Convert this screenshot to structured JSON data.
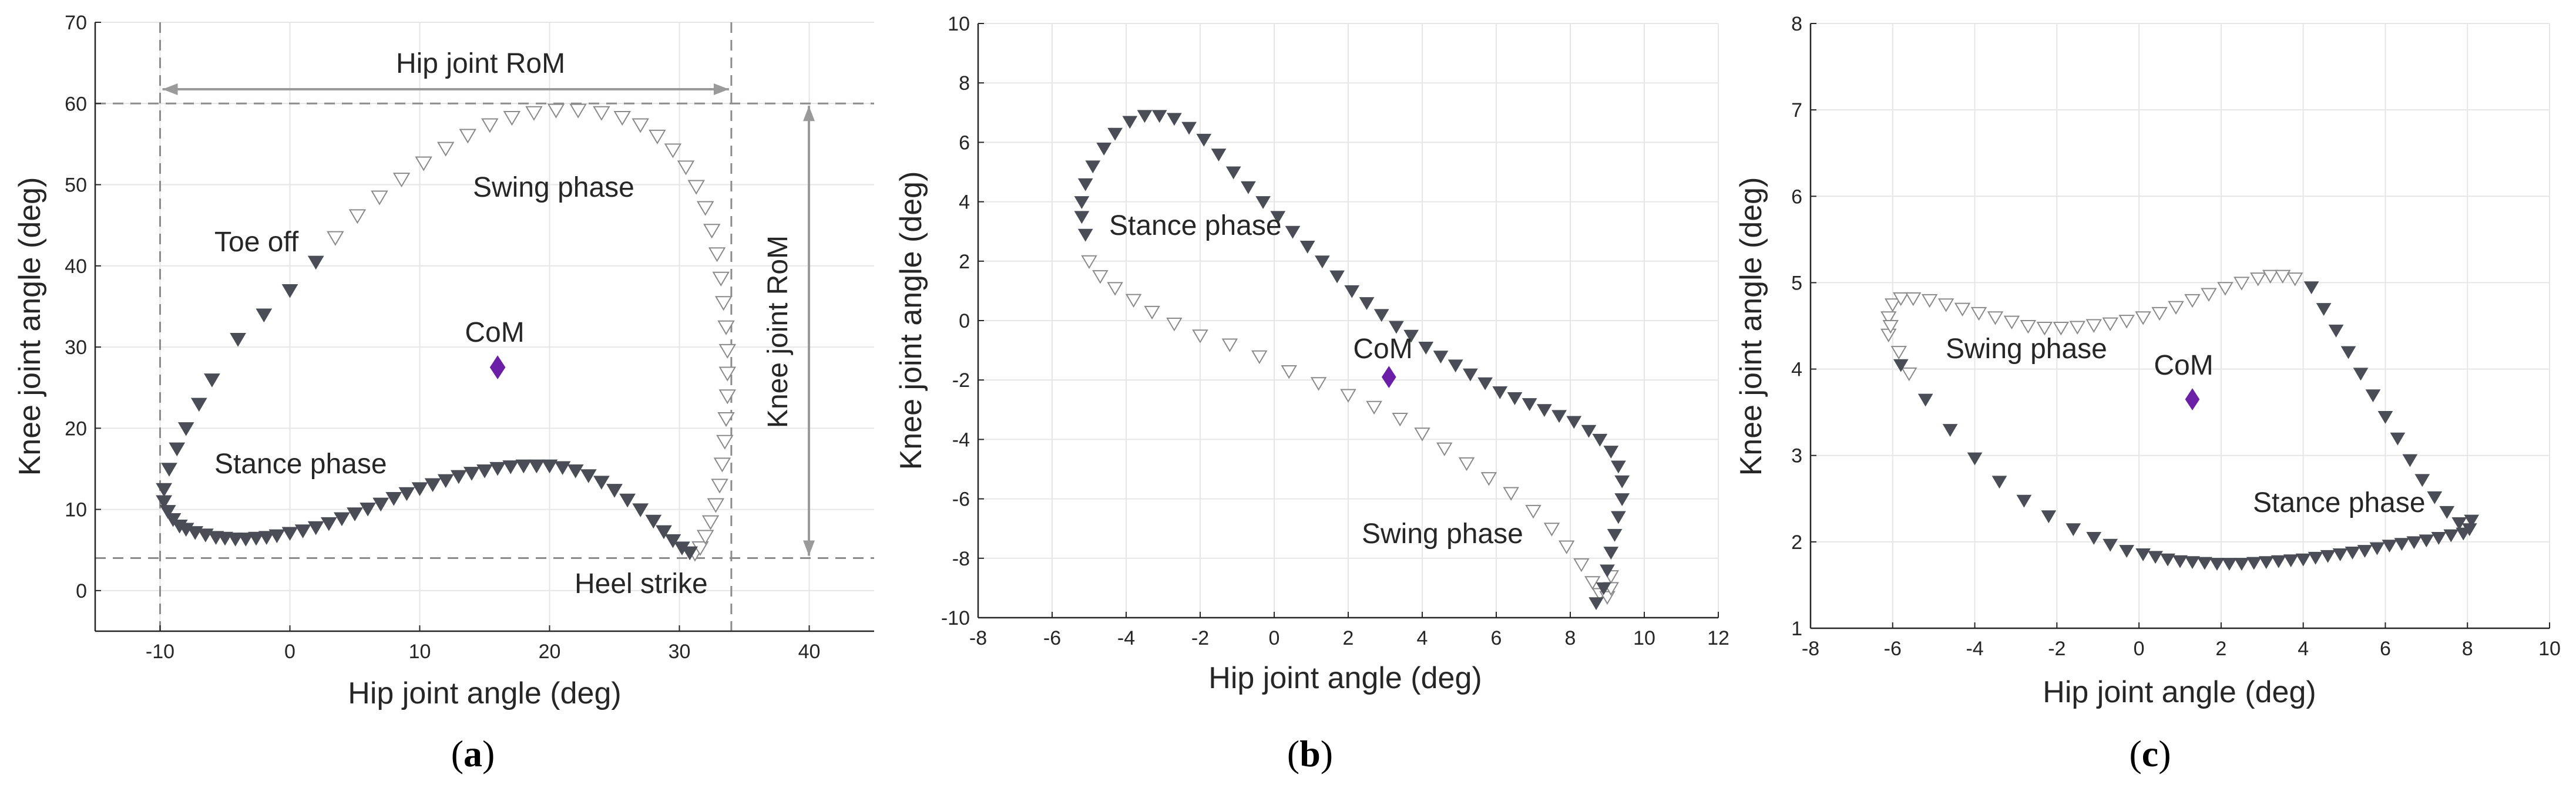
{
  "colors": {
    "stance_marker": "#4a4d55",
    "swing_marker_stroke": "#8a8a8a",
    "com_marker": "#6a1fa6",
    "grid": "#e6e6e6",
    "axis": "#262626",
    "guide": "#8c8c8c"
  },
  "chart_data": [
    {
      "type": "scatter",
      "panel_label": "a",
      "xlabel": "Hip joint angle (deg)",
      "ylabel": "Knee joint angle (deg)",
      "xlim": [
        -15,
        45
      ],
      "ylim": [
        -5,
        70
      ],
      "xticks": [
        -10,
        0,
        10,
        20,
        30,
        40
      ],
      "yticks": [
        0,
        10,
        20,
        30,
        40,
        50,
        60,
        70
      ],
      "grid": true,
      "stance_label": "Stance phase",
      "swing_label": "Swing phase",
      "com_label": "CoM",
      "extra_labels": {
        "toe_off": "Toe off",
        "heel_strike": "Heel strike",
        "hip_rom": "Hip joint RoM",
        "knee_rom": "Knee joint RoM"
      },
      "guides": {
        "x_min": -10,
        "x_max": 34,
        "y_min": 4,
        "y_max": 60
      },
      "com": [
        16,
        27.5
      ],
      "stance": [
        [
          2,
          40.5
        ],
        [
          0,
          37
        ],
        [
          -2,
          34
        ],
        [
          -4,
          31
        ],
        [
          -6,
          26
        ],
        [
          -7,
          23
        ],
        [
          -8,
          20
        ],
        [
          -8.7,
          17.5
        ],
        [
          -9.3,
          15
        ],
        [
          -9.7,
          12.5
        ],
        [
          -9.7,
          11
        ],
        [
          -9.4,
          9.8
        ],
        [
          -9,
          8.8
        ],
        [
          -8.5,
          8
        ],
        [
          -8,
          7.6
        ],
        [
          -7.3,
          7.2
        ],
        [
          -6.5,
          6.9
        ],
        [
          -5.7,
          6.6
        ],
        [
          -5,
          6.5
        ],
        [
          -4.2,
          6.4
        ],
        [
          -3.4,
          6.4
        ],
        [
          -2.6,
          6.5
        ],
        [
          -1.8,
          6.6
        ],
        [
          -1,
          6.8
        ],
        [
          0,
          7.1
        ],
        [
          1,
          7.4
        ],
        [
          2,
          7.8
        ],
        [
          3,
          8.3
        ],
        [
          4,
          8.9
        ],
        [
          5,
          9.5
        ],
        [
          6,
          10.1
        ],
        [
          7,
          10.7
        ],
        [
          8,
          11.4
        ],
        [
          9,
          12
        ],
        [
          10,
          12.6
        ],
        [
          11,
          13.1
        ],
        [
          12,
          13.6
        ],
        [
          13,
          14.1
        ],
        [
          14,
          14.5
        ],
        [
          15,
          14.8
        ],
        [
          16,
          15.1
        ],
        [
          17,
          15.3
        ],
        [
          18,
          15.4
        ],
        [
          19,
          15.4
        ],
        [
          20,
          15.4
        ],
        [
          21,
          15.2
        ],
        [
          22,
          14.8
        ],
        [
          23,
          14.2
        ],
        [
          24,
          13.4
        ],
        [
          25,
          12.4
        ],
        [
          26,
          11.2
        ],
        [
          27,
          10
        ],
        [
          28,
          8.6
        ],
        [
          28.8,
          7.3
        ],
        [
          29.5,
          6.2
        ],
        [
          30.2,
          5.3
        ],
        [
          30.8,
          4.7
        ]
      ],
      "swing": [
        [
          31.2,
          4.6
        ],
        [
          31.6,
          5.3
        ],
        [
          32,
          6.7
        ],
        [
          32.4,
          8.5
        ],
        [
          32.8,
          10.6
        ],
        [
          33.1,
          13
        ],
        [
          33.3,
          15.6
        ],
        [
          33.5,
          18.4
        ],
        [
          33.6,
          21.2
        ],
        [
          33.7,
          24
        ],
        [
          33.7,
          26.8
        ],
        [
          33.7,
          29.6
        ],
        [
          33.6,
          32.5
        ],
        [
          33.4,
          35.5
        ],
        [
          33.2,
          38.5
        ],
        [
          32.9,
          41.5
        ],
        [
          32.5,
          44.4
        ],
        [
          32,
          47.2
        ],
        [
          31.3,
          49.8
        ],
        [
          30.5,
          52.2
        ],
        [
          29.5,
          54.3
        ],
        [
          28.3,
          56
        ],
        [
          27,
          57.4
        ],
        [
          25.6,
          58.3
        ],
        [
          24,
          58.9
        ],
        [
          22.2,
          59.2
        ],
        [
          20.5,
          59.2
        ],
        [
          18.8,
          58.9
        ],
        [
          17.1,
          58.3
        ],
        [
          15.4,
          57.4
        ],
        [
          13.7,
          56.1
        ],
        [
          12,
          54.5
        ],
        [
          10.3,
          52.7
        ],
        [
          8.6,
          50.7
        ],
        [
          6.9,
          48.5
        ],
        [
          5.2,
          46.2
        ],
        [
          3.5,
          43.5
        ]
      ]
    },
    {
      "type": "scatter",
      "panel_label": "b",
      "xlabel": "Hip joint angle (deg)",
      "ylabel": "Knee joint angle (deg)",
      "xlim": [
        -8,
        12
      ],
      "ylim": [
        -10,
        10
      ],
      "xticks": [
        -8,
        -6,
        -4,
        -2,
        0,
        2,
        4,
        6,
        8,
        10,
        12
      ],
      "yticks": [
        -10,
        -8,
        -6,
        -4,
        -2,
        0,
        2,
        4,
        6,
        8,
        10
      ],
      "grid": true,
      "stance_label": "Stance phase",
      "swing_label": "Swing phase",
      "com_label": "CoM",
      "com": [
        3.1,
        -1.9
      ],
      "stance": [
        [
          -5.1,
          2.9
        ],
        [
          -5.2,
          3.5
        ],
        [
          -5.2,
          4
        ],
        [
          -5.1,
          4.6
        ],
        [
          -4.9,
          5.2
        ],
        [
          -4.6,
          5.8
        ],
        [
          -4.3,
          6.3
        ],
        [
          -3.9,
          6.7
        ],
        [
          -3.5,
          6.9
        ],
        [
          -3.1,
          6.9
        ],
        [
          -2.7,
          6.8
        ],
        [
          -2.3,
          6.5
        ],
        [
          -1.9,
          6.1
        ],
        [
          -1.5,
          5.6
        ],
        [
          -1.1,
          5
        ],
        [
          -0.7,
          4.5
        ],
        [
          -0.3,
          4
        ],
        [
          0.1,
          3.5
        ],
        [
          0.5,
          3
        ],
        [
          0.9,
          2.5
        ],
        [
          1.3,
          2
        ],
        [
          1.7,
          1.5
        ],
        [
          2.1,
          1
        ],
        [
          2.5,
          0.6
        ],
        [
          2.9,
          0.2
        ],
        [
          3.3,
          -0.2
        ],
        [
          3.7,
          -0.5
        ],
        [
          4.1,
          -0.9
        ],
        [
          4.5,
          -1.2
        ],
        [
          4.9,
          -1.5
        ],
        [
          5.3,
          -1.8
        ],
        [
          5.7,
          -2.1
        ],
        [
          6.1,
          -2.4
        ],
        [
          6.5,
          -2.6
        ],
        [
          6.9,
          -2.8
        ],
        [
          7.3,
          -3
        ],
        [
          7.7,
          -3.2
        ],
        [
          8.1,
          -3.4
        ],
        [
          8.5,
          -3.7
        ],
        [
          8.8,
          -4
        ],
        [
          9.1,
          -4.4
        ],
        [
          9.3,
          -4.9
        ],
        [
          9.4,
          -5.4
        ],
        [
          9.4,
          -6
        ],
        [
          9.3,
          -6.6
        ],
        [
          9.2,
          -7.2
        ],
        [
          9.1,
          -7.8
        ],
        [
          9,
          -8.4
        ],
        [
          8.9,
          -9
        ],
        [
          8.7,
          -9.5
        ]
      ],
      "swing": [
        [
          -5,
          2
        ],
        [
          -4.7,
          1.5
        ],
        [
          -4.3,
          1.1
        ],
        [
          -3.8,
          0.7
        ],
        [
          -3.3,
          0.3
        ],
        [
          -2.7,
          -0.1
        ],
        [
          -2,
          -0.5
        ],
        [
          -1.2,
          -0.8
        ],
        [
          -0.4,
          -1.2
        ],
        [
          0.4,
          -1.7
        ],
        [
          1.2,
          -2.1
        ],
        [
          2,
          -2.5
        ],
        [
          2.7,
          -2.9
        ],
        [
          3.4,
          -3.3
        ],
        [
          4,
          -3.8
        ],
        [
          4.6,
          -4.3
        ],
        [
          5.2,
          -4.8
        ],
        [
          5.8,
          -5.3
        ],
        [
          6.4,
          -5.8
        ],
        [
          7,
          -6.4
        ],
        [
          7.5,
          -7
        ],
        [
          7.9,
          -7.6
        ],
        [
          8.3,
          -8.2
        ],
        [
          8.6,
          -8.8
        ],
        [
          8.8,
          -9.2
        ],
        [
          9,
          -9.3
        ],
        [
          9.1,
          -9
        ],
        [
          9.1,
          -8.6
        ]
      ]
    },
    {
      "type": "scatter",
      "panel_label": "c",
      "xlabel": "Hip joint angle (deg)",
      "ylabel": "Knee joint angle (deg)",
      "xlim": [
        -8,
        10
      ],
      "ylim": [
        1,
        8
      ],
      "xticks": [
        -8,
        -6,
        -4,
        -2,
        0,
        2,
        4,
        6,
        8,
        10
      ],
      "yticks": [
        1,
        2,
        3,
        4,
        5,
        6,
        7,
        8
      ],
      "grid": true,
      "stance_label": "Stance phase",
      "swing_label": "Swing phase",
      "com_label": "CoM",
      "com": [
        1.3,
        3.65
      ],
      "stance": [
        [
          4.2,
          4.95
        ],
        [
          4.5,
          4.7
        ],
        [
          4.8,
          4.45
        ],
        [
          5.1,
          4.2
        ],
        [
          5.4,
          3.95
        ],
        [
          5.7,
          3.7
        ],
        [
          6,
          3.45
        ],
        [
          6.3,
          3.2
        ],
        [
          6.6,
          2.95
        ],
        [
          6.9,
          2.72
        ],
        [
          7.2,
          2.52
        ],
        [
          7.5,
          2.35
        ],
        [
          7.8,
          2.22
        ],
        [
          8.05,
          2.15
        ],
        [
          8.1,
          2.25
        ],
        [
          7.9,
          2.1
        ],
        [
          7.6,
          2.08
        ],
        [
          7.3,
          2.05
        ],
        [
          7,
          2.02
        ],
        [
          6.7,
          2
        ],
        [
          6.4,
          1.98
        ],
        [
          6.1,
          1.96
        ],
        [
          5.8,
          1.93
        ],
        [
          5.5,
          1.9
        ],
        [
          5.2,
          1.88
        ],
        [
          4.9,
          1.86
        ],
        [
          4.6,
          1.84
        ],
        [
          4.3,
          1.82
        ],
        [
          4,
          1.8
        ],
        [
          3.7,
          1.79
        ],
        [
          3.4,
          1.78
        ],
        [
          3.1,
          1.77
        ],
        [
          2.8,
          1.76
        ],
        [
          2.5,
          1.75
        ],
        [
          2.2,
          1.75
        ],
        [
          1.9,
          1.75
        ],
        [
          1.6,
          1.76
        ],
        [
          1.3,
          1.77
        ],
        [
          1,
          1.78
        ],
        [
          0.7,
          1.8
        ],
        [
          0.4,
          1.83
        ],
        [
          0.1,
          1.86
        ],
        [
          -0.3,
          1.9
        ],
        [
          -0.7,
          1.97
        ],
        [
          -1.1,
          2.05
        ],
        [
          -1.6,
          2.15
        ],
        [
          -2.2,
          2.3
        ],
        [
          -2.8,
          2.48
        ],
        [
          -3.4,
          2.7
        ],
        [
          -4,
          2.97
        ],
        [
          -4.6,
          3.3
        ],
        [
          -5.2,
          3.65
        ],
        [
          -5.8,
          4.05
        ]
      ],
      "swing": [
        [
          -6.1,
          4.4
        ],
        [
          -6.1,
          4.6
        ],
        [
          -6,
          4.75
        ],
        [
          -5.8,
          4.82
        ],
        [
          -5.5,
          4.82
        ],
        [
          -5.1,
          4.8
        ],
        [
          -4.7,
          4.75
        ],
        [
          -4.3,
          4.7
        ],
        [
          -3.9,
          4.65
        ],
        [
          -3.5,
          4.6
        ],
        [
          -3.1,
          4.55
        ],
        [
          -2.7,
          4.5
        ],
        [
          -2.3,
          4.48
        ],
        [
          -1.9,
          4.48
        ],
        [
          -1.5,
          4.49
        ],
        [
          -1.1,
          4.51
        ],
        [
          -0.7,
          4.53
        ],
        [
          -0.3,
          4.56
        ],
        [
          0.1,
          4.6
        ],
        [
          0.5,
          4.65
        ],
        [
          0.9,
          4.72
        ],
        [
          1.3,
          4.8
        ],
        [
          1.7,
          4.87
        ],
        [
          2.1,
          4.94
        ],
        [
          2.5,
          5
        ],
        [
          2.9,
          5.05
        ],
        [
          3.2,
          5.08
        ],
        [
          3.5,
          5.08
        ],
        [
          3.8,
          5.05
        ],
        [
          -6.05,
          4.5
        ],
        [
          -5.85,
          4.2
        ],
        [
          -5.6,
          3.95
        ]
      ]
    }
  ]
}
